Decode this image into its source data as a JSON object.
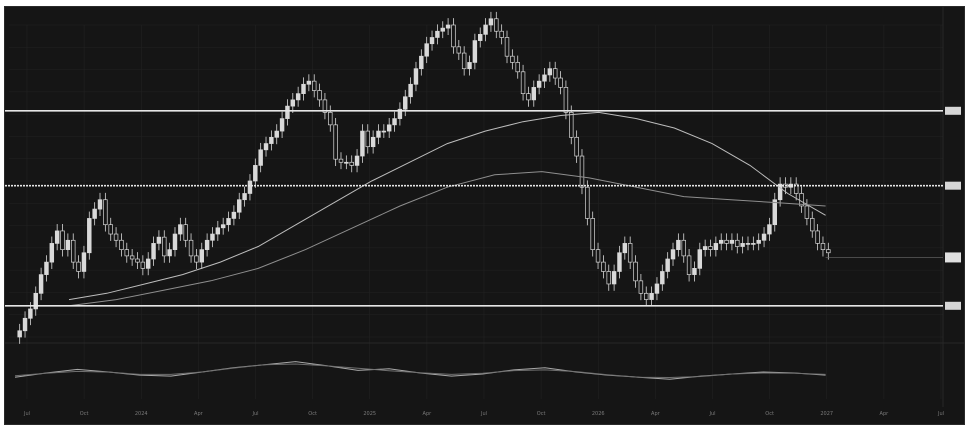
{
  "colors": {
    "background": "#151515",
    "candle": "#d9d9d9",
    "ma": "#bdbdbd",
    "level": "#e6e6e6",
    "grid": "#232323",
    "rsi": "#a8a8a8",
    "axis_text": "#7a7a7a"
  },
  "chart_data": {
    "type": "candlestick",
    "x_tick_labels": [
      "Jul",
      "Oct",
      "2024",
      "Apr",
      "Jul",
      "Oct",
      "2025",
      "Apr",
      "Jul",
      "Oct",
      "2026",
      "Apr",
      "Jul",
      "Oct",
      "2027",
      "Apr",
      "Jul"
    ],
    "y_tick_labels": [
      "",
      "",
      "",
      "",
      "",
      "",
      "",
      "",
      "",
      "",
      "",
      "",
      "",
      "",
      ""
    ],
    "ylim": [
      0,
      100
    ],
    "horizontal_levels": [
      {
        "value": 72.5,
        "style": "solid"
      },
      {
        "value": 48.5,
        "style": "dotted"
      },
      {
        "value": 10.0,
        "style": "solid"
      }
    ],
    "current_price_marker": 25.5,
    "closes": [
      2,
      6,
      9,
      14,
      20,
      24,
      30,
      34,
      28,
      31,
      24,
      21,
      27,
      38,
      41,
      44,
      36,
      33,
      31,
      28,
      26,
      25,
      24,
      22,
      25,
      30,
      32,
      26,
      28,
      33,
      36,
      31,
      26,
      24,
      28,
      31,
      33,
      35,
      36,
      38,
      40,
      44,
      46,
      50,
      55,
      60,
      62,
      64,
      66,
      70,
      74,
      76,
      78,
      81,
      82,
      79,
      76,
      72,
      68,
      57,
      56,
      56,
      55,
      58,
      66,
      61,
      64,
      66,
      66,
      68,
      70,
      73,
      77,
      81,
      86,
      90,
      94,
      96,
      98,
      99,
      100,
      93,
      91,
      86,
      88,
      95,
      97,
      100,
      102,
      98,
      96,
      90,
      88,
      85,
      78,
      76,
      80,
      82,
      84,
      86,
      83,
      80,
      72,
      64,
      58,
      48,
      38,
      28,
      24,
      21,
      17,
      21,
      27,
      30,
      24,
      18,
      14,
      12,
      14,
      17,
      21,
      25,
      28,
      31,
      26,
      20,
      22,
      28,
      29,
      28,
      30,
      31,
      30,
      31,
      29,
      30,
      30,
      30,
      31,
      33,
      36,
      44,
      49,
      48,
      49,
      46,
      42,
      38,
      34,
      30,
      28,
      27
    ],
    "sma_long": [
      12,
      14,
      17,
      20,
      24,
      29,
      36,
      43,
      50,
      56,
      62,
      66,
      69,
      71,
      72,
      70,
      67,
      62,
      55,
      46,
      39
    ],
    "sma_mid": [
      10,
      12,
      15,
      18,
      22,
      28,
      35,
      42,
      48,
      52,
      53,
      51,
      48,
      45,
      44,
      43,
      42
    ],
    "rsi": [
      42,
      50,
      57,
      52,
      46,
      44,
      52,
      60,
      66,
      72,
      64,
      55,
      58,
      50,
      44,
      48,
      56,
      60,
      52,
      46,
      42,
      38,
      44,
      48,
      52,
      50,
      46
    ]
  }
}
